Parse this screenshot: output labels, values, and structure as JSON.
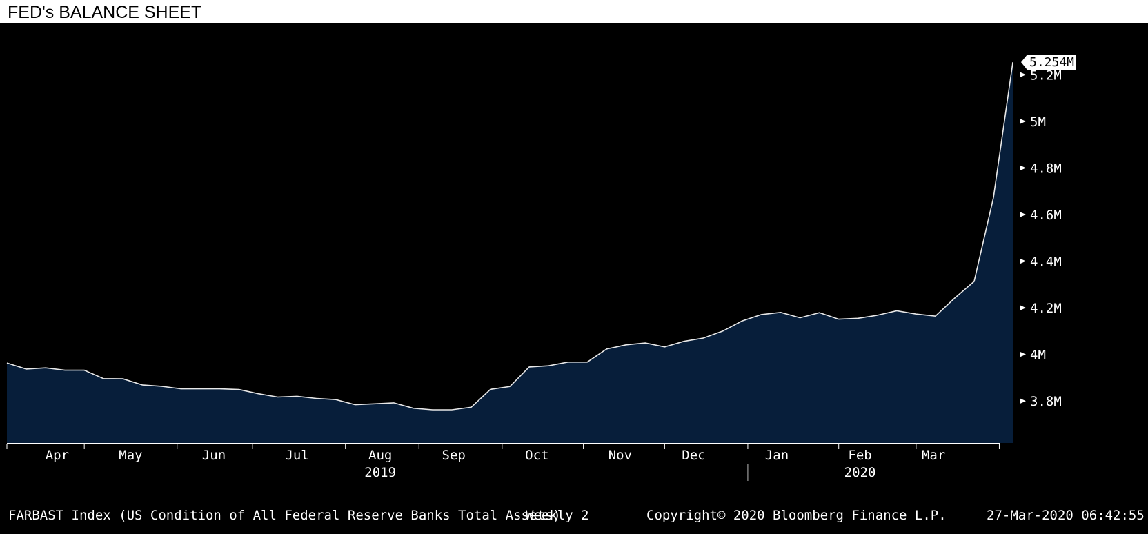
{
  "title": "FED's BALANCE SHEET",
  "colors": {
    "background": "#000000",
    "area_fill": "#071e3a",
    "line": "#e8e8e8",
    "text": "#ffffff",
    "last_label_bg": "#ffffff"
  },
  "chart_data": {
    "type": "area",
    "title": "FED's BALANCE SHEET",
    "series_name": "FARBAST Index (US Condition of All Federal Reserve Banks Total Assets)",
    "frequency": "Weekly",
    "y_unit": "M",
    "ylim": [
      3.62,
      5.42
    ],
    "y_ticks": [
      3.8,
      4.0,
      4.2,
      4.4,
      4.6,
      4.8,
      5.0,
      5.2
    ],
    "y_tick_labels": [
      "3.8M",
      "4M",
      "4.2M",
      "4.4M",
      "4.6M",
      "4.8M",
      "5M",
      "5.2M"
    ],
    "x_month_labels": [
      "Apr",
      "May",
      "Jun",
      "Jul",
      "Aug",
      "Sep",
      "Oct",
      "Nov",
      "Dec",
      "Jan",
      "Feb",
      "Mar"
    ],
    "x_month_positions": [
      2.6,
      6.4,
      10.7,
      15.0,
      19.3,
      23.1,
      27.4,
      31.7,
      35.5,
      39.8,
      44.1,
      47.9
    ],
    "x_year_labels": [
      {
        "label": "2019",
        "position": 19.3
      },
      {
        "label": "2020",
        "position": 44.1
      }
    ],
    "year_boundary_position": 38.3,
    "last_value": 5.254,
    "last_value_label": "5.254M",
    "values": [
      3.963,
      3.937,
      3.942,
      3.932,
      3.932,
      3.896,
      3.895,
      3.869,
      3.863,
      3.852,
      3.852,
      3.852,
      3.849,
      3.831,
      3.817,
      3.82,
      3.811,
      3.806,
      3.784,
      3.788,
      3.792,
      3.769,
      3.762,
      3.762,
      3.773,
      3.85,
      3.862,
      3.946,
      3.951,
      3.967,
      3.967,
      4.023,
      4.041,
      4.049,
      4.032,
      4.056,
      4.07,
      4.1,
      4.143,
      4.171,
      4.18,
      4.157,
      4.179,
      4.151,
      4.155,
      4.168,
      4.187,
      4.173,
      4.164,
      4.242,
      4.313,
      4.673,
      5.254
    ]
  },
  "footer": {
    "description": "FARBAST Index (US Condition of All Federal Reserve Banks Total Assets)",
    "frequency": "Weekly 2",
    "copyright": "Copyright© 2020 Bloomberg Finance L.P.",
    "timestamp": "27-Mar-2020 06:42:55"
  }
}
